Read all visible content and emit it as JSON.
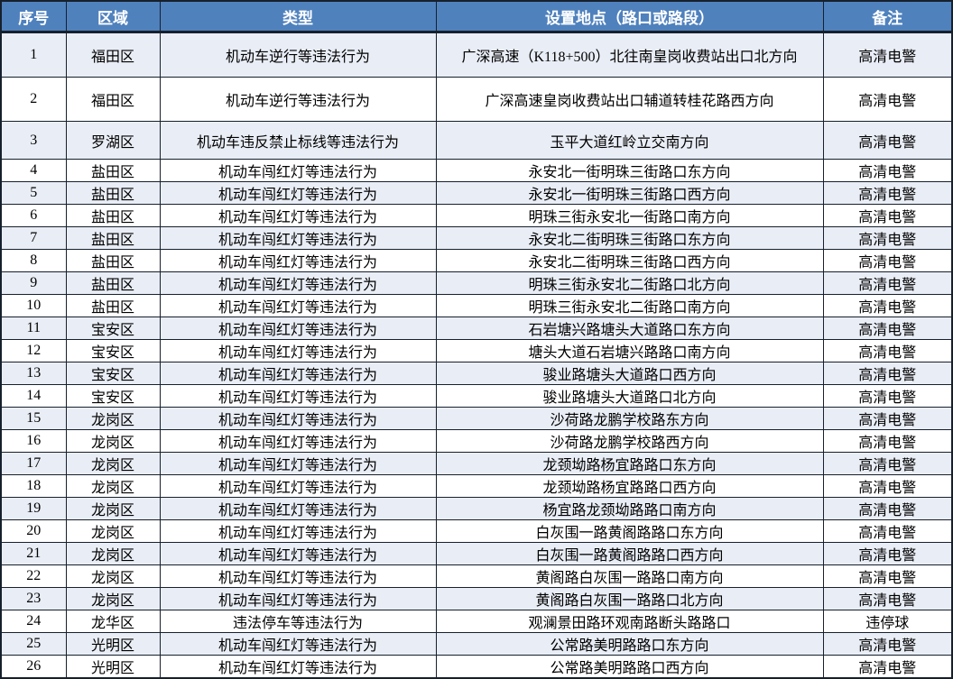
{
  "table": {
    "columns": [
      "序号",
      "区域",
      "类型",
      "设置地点（路口或路段）",
      "备注"
    ],
    "rows": [
      [
        "1",
        "福田区",
        "机动车逆行等违法行为",
        "广深高速（K118+500）北往南皇岗收费站出口北方向",
        "高清电警"
      ],
      [
        "2",
        "福田区",
        "机动车逆行等违法行为",
        "广深高速皇岗收费站出口辅道转桂花路西方向",
        "高清电警"
      ],
      [
        "3",
        "罗湖区",
        "机动车违反禁止标线等违法行为",
        "玉平大道红岭立交南方向",
        "高清电警"
      ],
      [
        "4",
        "盐田区",
        "机动车闯红灯等违法行为",
        "永安北一街明珠三街路口东方向",
        "高清电警"
      ],
      [
        "5",
        "盐田区",
        "机动车闯红灯等违法行为",
        "永安北一街明珠三街路口西方向",
        "高清电警"
      ],
      [
        "6",
        "盐田区",
        "机动车闯红灯等违法行为",
        "明珠三街永安北一街路口南方向",
        "高清电警"
      ],
      [
        "7",
        "盐田区",
        "机动车闯红灯等违法行为",
        "永安北二街明珠三街路口东方向",
        "高清电警"
      ],
      [
        "8",
        "盐田区",
        "机动车闯红灯等违法行为",
        "永安北二街明珠三街路口西方向",
        "高清电警"
      ],
      [
        "9",
        "盐田区",
        "机动车闯红灯等违法行为",
        "明珠三街永安北二街路口北方向",
        "高清电警"
      ],
      [
        "10",
        "盐田区",
        "机动车闯红灯等违法行为",
        "明珠三街永安北二街路口南方向",
        "高清电警"
      ],
      [
        "11",
        "宝安区",
        "机动车闯红灯等违法行为",
        "石岩塘兴路塘头大道路口东方向",
        "高清电警"
      ],
      [
        "12",
        "宝安区",
        "机动车闯红灯等违法行为",
        "塘头大道石岩塘兴路路口南方向",
        "高清电警"
      ],
      [
        "13",
        "宝安区",
        "机动车闯红灯等违法行为",
        "骏业路塘头大道路口西方向",
        "高清电警"
      ],
      [
        "14",
        "宝安区",
        "机动车闯红灯等违法行为",
        "骏业路塘头大道路口北方向",
        "高清电警"
      ],
      [
        "15",
        "龙岗区",
        "机动车闯红灯等违法行为",
        "沙荷路龙鹏学校路东方向",
        "高清电警"
      ],
      [
        "16",
        "龙岗区",
        "机动车闯红灯等违法行为",
        "沙荷路龙鹏学校路西方向",
        "高清电警"
      ],
      [
        "17",
        "龙岗区",
        "机动车闯红灯等违法行为",
        "龙颈坳路杨宜路路口东方向",
        "高清电警"
      ],
      [
        "18",
        "龙岗区",
        "机动车闯红灯等违法行为",
        "龙颈坳路杨宜路路口西方向",
        "高清电警"
      ],
      [
        "19",
        "龙岗区",
        "机动车闯红灯等违法行为",
        "杨宜路龙颈坳路路口南方向",
        "高清电警"
      ],
      [
        "20",
        "龙岗区",
        "机动车闯红灯等违法行为",
        "白灰围一路黄阁路路口东方向",
        "高清电警"
      ],
      [
        "21",
        "龙岗区",
        "机动车闯红灯等违法行为",
        "白灰围一路黄阁路路口西方向",
        "高清电警"
      ],
      [
        "22",
        "龙岗区",
        "机动车闯红灯等违法行为",
        "黄阁路白灰围一路路口南方向",
        "高清电警"
      ],
      [
        "23",
        "龙岗区",
        "机动车闯红灯等违法行为",
        "黄阁路白灰围一路路口北方向",
        "高清电警"
      ],
      [
        "24",
        "龙华区",
        "违法停车等违法行为",
        "观澜景田路环观南路断头路路口",
        "违停球"
      ],
      [
        "25",
        "光明区",
        "机动车闯红灯等违法行为",
        "公常路美明路路口东方向",
        "高清电警"
      ],
      [
        "26",
        "光明区",
        "机动车闯红灯等违法行为",
        "公常路美明路路口西方向",
        "高清电警"
      ]
    ],
    "colors": {
      "header_bg": "#4f81bd",
      "header_text": "#ffffff",
      "band_bg": "#e9edf5",
      "plain_bg": "#ffffff",
      "border": "#16202c"
    }
  }
}
